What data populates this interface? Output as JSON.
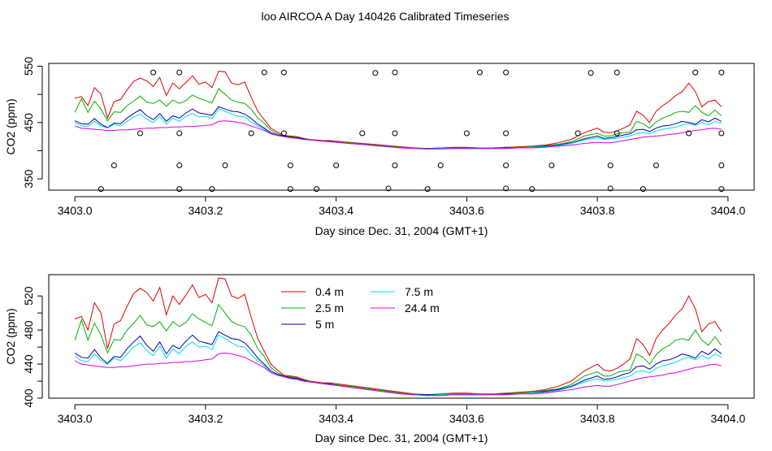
{
  "title": "loo AIRCOA A  Day 140426  Calibrated Timeseries",
  "chart_data": [
    {
      "type": "scatter",
      "panel": "top",
      "xlabel": "Day since Dec. 31, 2004 (GMT+1)",
      "ylabel": "CO2 (ppm)",
      "xlim": [
        3402.96,
        3404.04
      ],
      "ylim": [
        330,
        555
      ],
      "x_ticks": [
        "3403.0",
        "3403.2",
        "3403.4",
        "3403.6",
        "3403.8",
        "3404.0"
      ],
      "y_ticks": [
        "350",
        "450",
        "550"
      ],
      "y_minor_ticks": [
        400,
        500
      ],
      "grid": false,
      "x": [
        3403.0,
        3403.01,
        3403.02,
        3403.03,
        3403.04,
        3403.05,
        3403.06,
        3403.07,
        3403.08,
        3403.09,
        3403.1,
        3403.11,
        3403.12,
        3403.13,
        3403.14,
        3403.15,
        3403.16,
        3403.17,
        3403.18,
        3403.19,
        3403.2,
        3403.21,
        3403.22,
        3403.23,
        3403.24,
        3403.25,
        3403.26,
        3403.27,
        3403.28,
        3403.29,
        3403.3,
        3403.31,
        3403.32,
        3403.33,
        3403.34,
        3403.35,
        3403.36,
        3403.37,
        3403.38,
        3403.39,
        3403.4,
        3403.42,
        3403.44,
        3403.46,
        3403.48,
        3403.5,
        3403.52,
        3403.54,
        3403.56,
        3403.58,
        3403.6,
        3403.62,
        3403.64,
        3403.66,
        3403.68,
        3403.7,
        3403.72,
        3403.74,
        3403.76,
        3403.78,
        3403.8,
        3403.81,
        3403.82,
        3403.83,
        3403.84,
        3403.85,
        3403.86,
        3403.87,
        3403.88,
        3403.89,
        3403.9,
        3403.91,
        3403.92,
        3403.93,
        3403.94,
        3403.95,
        3403.96,
        3403.97,
        3403.98,
        3403.99
      ],
      "series": [
        {
          "name": "0.4 m",
          "color": "#DF0000",
          "values": [
            493,
            496,
            480,
            512,
            500,
            458,
            487,
            491,
            508,
            523,
            529,
            524,
            514,
            530,
            498,
            520,
            510,
            521,
            533,
            518,
            522,
            512,
            541,
            540,
            520,
            517,
            522,
            495,
            470,
            455,
            440,
            433,
            427,
            426,
            425,
            422,
            420,
            419,
            418,
            418,
            417,
            415,
            413,
            411,
            409,
            407,
            405,
            404,
            405,
            406,
            406,
            405,
            405,
            406,
            407,
            408,
            410,
            414,
            420,
            432,
            440,
            433,
            432,
            435,
            440,
            446,
            470,
            463,
            450,
            470,
            480,
            488,
            498,
            505,
            520,
            505,
            478,
            487,
            490,
            478
          ]
        },
        {
          "name": "2.5 m",
          "color": "#00B000",
          "values": [
            468,
            492,
            468,
            488,
            474,
            453,
            469,
            468,
            480,
            488,
            497,
            486,
            484,
            490,
            479,
            490,
            484,
            489,
            499,
            493,
            489,
            485,
            510,
            500,
            490,
            486,
            484,
            474,
            458,
            449,
            436,
            430,
            426,
            425,
            424,
            421,
            420,
            418,
            417,
            417,
            416,
            414,
            412,
            410,
            408,
            406,
            405,
            404,
            405,
            405,
            405,
            405,
            405,
            406,
            406,
            407,
            409,
            411,
            416,
            426,
            431,
            426,
            426,
            430,
            432,
            433,
            452,
            448,
            440,
            451,
            458,
            462,
            468,
            470,
            468,
            480,
            468,
            462,
            472,
            462
          ]
        },
        {
          "name": "5 m",
          "color": "#0000B0",
          "values": [
            453,
            448,
            447,
            457,
            447,
            441,
            449,
            448,
            458,
            466,
            473,
            462,
            455,
            466,
            452,
            462,
            458,
            467,
            474,
            467,
            465,
            463,
            478,
            474,
            470,
            469,
            465,
            457,
            447,
            440,
            432,
            428,
            426,
            424,
            423,
            421,
            419,
            418,
            417,
            417,
            415,
            413,
            411,
            409,
            407,
            405,
            404,
            404,
            404,
            404,
            404,
            404,
            404,
            405,
            405,
            406,
            408,
            410,
            414,
            421,
            426,
            422,
            423,
            425,
            428,
            430,
            437,
            438,
            434,
            440,
            444,
            445,
            448,
            452,
            450,
            447,
            455,
            451,
            458,
            452
          ]
        },
        {
          "name": "7.5 m",
          "color": "#00DDDD",
          "values": [
            450,
            444,
            443,
            452,
            444,
            440,
            447,
            444,
            452,
            460,
            465,
            456,
            450,
            461,
            447,
            458,
            452,
            461,
            466,
            460,
            461,
            457,
            474,
            470,
            465,
            461,
            460,
            451,
            444,
            438,
            430,
            427,
            425,
            423,
            422,
            420,
            419,
            418,
            417,
            416,
            415,
            413,
            411,
            409,
            407,
            405,
            404,
            403,
            404,
            404,
            404,
            404,
            404,
            404,
            405,
            406,
            407,
            409,
            413,
            419,
            423,
            420,
            421,
            422,
            424,
            426,
            431,
            432,
            430,
            435,
            438,
            440,
            442,
            446,
            448,
            445,
            450,
            446,
            452,
            448
          ]
        },
        {
          "name": "24.4 m",
          "color": "#DD00DD",
          "values": [
            444,
            440,
            439,
            438,
            437,
            436,
            436,
            437,
            437,
            438,
            439,
            440,
            440,
            441,
            441,
            442,
            442,
            443,
            443,
            444,
            445,
            446,
            452,
            453,
            452,
            450,
            448,
            444,
            440,
            436,
            430,
            427,
            425,
            423,
            422,
            420,
            419,
            418,
            417,
            416,
            415,
            413,
            411,
            409,
            407,
            405,
            404,
            403,
            403,
            404,
            404,
            404,
            404,
            404,
            405,
            405,
            406,
            408,
            410,
            413,
            415,
            414,
            414,
            416,
            418,
            420,
            422,
            424,
            425,
            426,
            427,
            429,
            430,
            432,
            434,
            436,
            437,
            439,
            440,
            438
          ]
        }
      ],
      "markers": {
        "symbol": "open-circle",
        "x": [
          3403.12,
          3403.16,
          3403.29,
          3403.32,
          3403.46,
          3403.49,
          3403.62,
          3403.66,
          3403.79,
          3403.83,
          3403.95,
          3403.99,
          3403.1,
          3403.16,
          3403.27,
          3403.32,
          3403.44,
          3403.49,
          3403.6,
          3403.66,
          3403.77,
          3403.83,
          3403.94,
          3403.99,
          3403.06,
          3403.16,
          3403.23,
          3403.33,
          3403.4,
          3403.49,
          3403.56,
          3403.66,
          3403.73,
          3403.82,
          3403.89,
          3403.99,
          3403.04,
          3403.16,
          3403.21,
          3403.33,
          3403.37,
          3403.48,
          3403.54,
          3403.66,
          3403.7,
          3403.82,
          3403.87,
          3403.99
        ],
        "y": [
          539,
          539,
          539,
          539,
          538,
          539,
          539,
          539,
          538,
          539,
          539,
          539,
          431,
          431,
          431,
          431,
          431,
          431,
          431,
          431,
          431,
          431,
          431,
          431,
          374,
          374,
          374,
          374,
          374,
          374,
          374,
          374,
          374,
          374,
          374,
          374,
          332,
          332,
          332,
          332,
          332,
          333,
          332,
          333,
          332,
          333,
          332,
          332
        ]
      }
    },
    {
      "type": "line",
      "panel": "bottom",
      "xlabel": "Day since Dec. 31, 2004 (GMT+1)",
      "ylabel": "CO2 (ppm)",
      "xlim": [
        3402.96,
        3404.04
      ],
      "ylim": [
        400,
        545
      ],
      "x_ticks": [
        "3403.0",
        "3403.2",
        "3403.4",
        "3403.6",
        "3403.8",
        "3404.0"
      ],
      "y_ticks": [
        "400",
        "440",
        "480",
        "520"
      ],
      "y_minor_ticks": [
        420,
        460,
        500
      ],
      "grid": false,
      "legend": {
        "placement": "top-center",
        "columns": [
          [
            "0.4 m",
            "2.5 m",
            "5 m"
          ],
          [
            "7.5 m",
            "24.4 m"
          ]
        ]
      },
      "series_ref": "same series as top panel"
    }
  ]
}
